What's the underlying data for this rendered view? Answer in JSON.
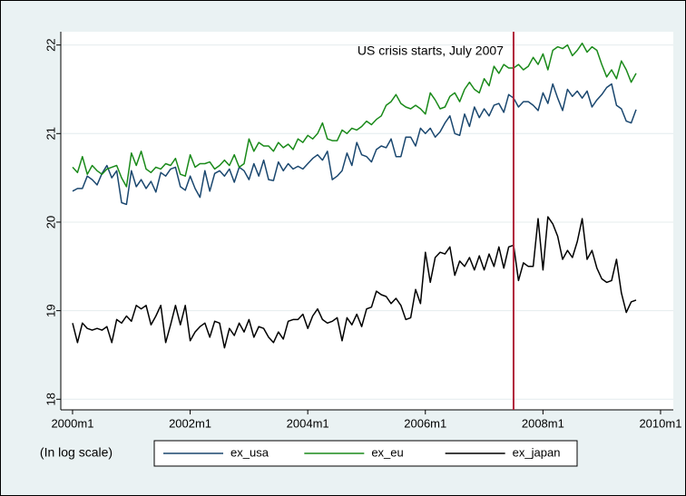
{
  "chart_data": {
    "type": "line",
    "note": "(In log scale)",
    "annotation": {
      "text": "US crisis starts, July 2007",
      "x": 570,
      "color": "#b0223a"
    },
    "x": [
      480,
      481,
      482,
      483,
      484,
      485,
      486,
      487,
      488,
      489,
      490,
      491,
      492,
      493,
      494,
      495,
      496,
      497,
      498,
      499,
      500,
      501,
      502,
      503,
      504,
      505,
      506,
      507,
      508,
      509,
      510,
      511,
      512,
      513,
      514,
      515,
      516,
      517,
      518,
      519,
      520,
      521,
      522,
      523,
      524,
      525,
      526,
      527,
      528,
      529,
      530,
      531,
      532,
      533,
      534,
      535,
      536,
      537,
      538,
      539,
      540,
      541,
      542,
      543,
      544,
      545,
      546,
      547,
      548,
      549,
      550,
      551,
      552,
      553,
      554,
      555,
      556,
      557,
      558,
      559,
      560,
      561,
      562,
      563,
      564,
      565,
      566,
      567,
      568,
      569,
      570,
      571,
      572,
      573,
      574,
      575,
      576,
      577,
      578,
      579,
      580,
      581,
      582,
      583,
      584,
      585,
      586,
      587,
      588,
      589,
      590,
      591,
      592,
      593,
      594,
      595
    ],
    "series": [
      {
        "name": "ex_usa",
        "color": "#1a476f",
        "values": [
          20.35,
          20.38,
          20.38,
          20.52,
          20.48,
          20.42,
          20.55,
          20.64,
          20.5,
          20.58,
          20.22,
          20.2,
          20.58,
          20.4,
          20.48,
          20.38,
          20.46,
          20.34,
          20.56,
          20.52,
          20.6,
          20.62,
          20.4,
          20.36,
          20.52,
          20.38,
          20.28,
          20.58,
          20.35,
          20.55,
          20.58,
          20.52,
          20.6,
          20.45,
          20.62,
          20.58,
          20.48,
          20.66,
          20.52,
          20.7,
          20.48,
          20.47,
          20.68,
          20.58,
          20.66,
          20.6,
          20.63,
          20.6,
          20.66,
          20.72,
          20.76,
          20.7,
          20.8,
          20.48,
          20.52,
          20.58,
          20.78,
          20.64,
          20.9,
          20.76,
          20.74,
          20.68,
          20.82,
          20.86,
          20.84,
          20.94,
          20.74,
          20.74,
          20.96,
          20.96,
          20.86,
          21.06,
          21.0,
          21.06,
          20.96,
          21.02,
          21.12,
          21.2,
          21.0,
          20.98,
          21.22,
          21.08,
          21.3,
          21.18,
          21.28,
          21.2,
          21.32,
          21.34,
          21.24,
          21.44,
          21.4,
          21.3,
          21.36,
          21.36,
          21.32,
          21.26,
          21.46,
          21.34,
          21.56,
          21.4,
          21.26,
          21.5,
          21.42,
          21.48,
          21.4,
          21.48,
          21.3,
          21.38,
          21.44,
          21.52,
          21.56,
          21.32,
          21.28,
          21.14,
          21.12,
          21.27
        ]
      },
      {
        "name": "ex_eu",
        "color": "#1a8a1a",
        "values": [
          20.62,
          20.56,
          20.74,
          20.54,
          20.64,
          20.58,
          20.54,
          20.6,
          20.62,
          20.64,
          20.5,
          20.4,
          20.78,
          20.64,
          20.8,
          20.6,
          20.56,
          20.62,
          20.6,
          20.66,
          20.64,
          20.72,
          20.54,
          20.52,
          20.76,
          20.62,
          20.66,
          20.66,
          20.68,
          20.6,
          20.64,
          20.7,
          20.64,
          20.76,
          20.62,
          20.66,
          20.94,
          20.8,
          20.9,
          20.86,
          20.86,
          20.8,
          20.9,
          20.84,
          20.88,
          20.82,
          20.94,
          20.9,
          20.98,
          20.94,
          21.0,
          21.12,
          20.94,
          20.92,
          20.92,
          21.04,
          21.0,
          21.06,
          21.04,
          21.08,
          21.14,
          21.1,
          21.16,
          21.2,
          21.32,
          21.36,
          21.44,
          21.34,
          21.3,
          21.28,
          21.32,
          21.28,
          21.22,
          21.46,
          21.38,
          21.28,
          21.3,
          21.42,
          21.46,
          21.36,
          21.5,
          21.58,
          21.5,
          21.46,
          21.62,
          21.54,
          21.76,
          21.68,
          21.78,
          21.74,
          21.74,
          21.78,
          21.72,
          21.76,
          21.86,
          21.78,
          21.9,
          21.72,
          21.94,
          21.98,
          21.96,
          22.0,
          21.88,
          21.94,
          22.02,
          21.92,
          21.98,
          21.94,
          21.78,
          21.64,
          21.72,
          21.62,
          21.82,
          21.72,
          21.58,
          21.68
        ]
      },
      {
        "name": "ex_japan",
        "color": "#000000",
        "values": [
          18.86,
          18.64,
          18.86,
          18.8,
          18.78,
          18.8,
          18.78,
          18.82,
          18.64,
          18.9,
          18.86,
          18.94,
          18.88,
          19.06,
          19.02,
          19.06,
          18.84,
          18.94,
          19.06,
          18.64,
          18.84,
          19.06,
          18.84,
          19.06,
          18.66,
          18.76,
          18.82,
          18.86,
          18.7,
          18.88,
          18.86,
          18.58,
          18.8,
          18.72,
          18.86,
          18.76,
          18.9,
          18.7,
          18.82,
          18.8,
          18.7,
          18.64,
          18.76,
          18.68,
          18.88,
          18.9,
          18.9,
          18.96,
          18.8,
          18.94,
          19.02,
          18.9,
          18.86,
          18.88,
          18.92,
          18.66,
          18.92,
          18.84,
          18.96,
          18.82,
          19.02,
          19.04,
          19.22,
          19.18,
          19.16,
          19.08,
          19.14,
          19.06,
          18.9,
          18.92,
          19.24,
          19.08,
          19.66,
          19.32,
          19.6,
          19.66,
          19.64,
          19.72,
          19.4,
          19.56,
          19.5,
          19.6,
          19.46,
          19.62,
          19.46,
          19.64,
          19.5,
          19.72,
          19.48,
          19.72,
          19.74,
          19.34,
          19.54,
          19.5,
          19.5,
          20.04,
          19.46,
          20.06,
          19.98,
          19.84,
          19.58,
          19.68,
          19.6,
          19.78,
          20.04,
          19.58,
          19.68,
          19.48,
          19.36,
          19.32,
          19.34,
          19.58,
          19.2,
          18.98,
          19.1,
          19.12
        ]
      }
    ],
    "xlim": [
      477.6,
      602.6
    ],
    "ylim": [
      17.88,
      22.15
    ],
    "xticks": [
      {
        "value": 480,
        "label": "2000m1"
      },
      {
        "value": 504,
        "label": "2002m1"
      },
      {
        "value": 528,
        "label": "2004m1"
      },
      {
        "value": 552,
        "label": "2006m1"
      },
      {
        "value": 576,
        "label": "2008m1"
      },
      {
        "value": 600,
        "label": "2010m1"
      }
    ],
    "yticks": [
      18,
      19,
      20,
      21,
      22
    ],
    "grid": true,
    "legend": "bottom"
  }
}
